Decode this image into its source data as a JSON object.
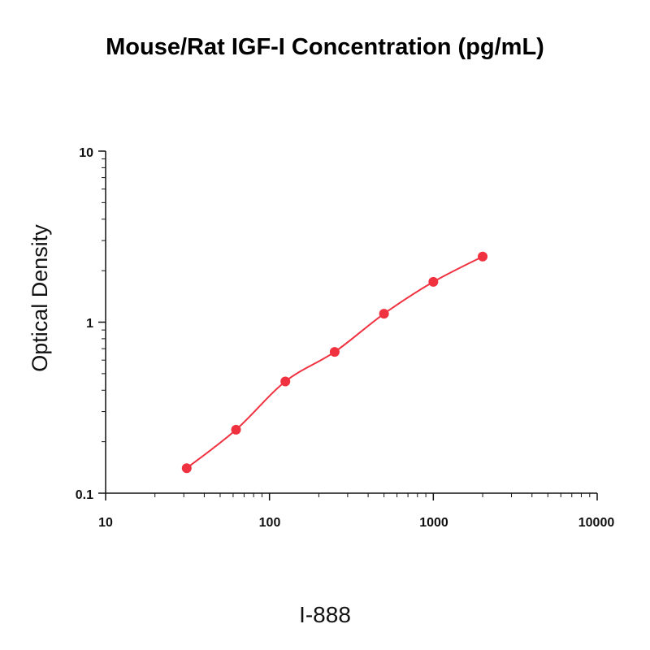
{
  "chart_data": {
    "type": "scatter",
    "title": "Mouse/Rat IGF-I Concentration (pg/mL)",
    "xlabel": "",
    "ylabel": "Optical Density",
    "x_scale": "log",
    "y_scale": "log",
    "xlim": [
      10,
      10000
    ],
    "ylim": [
      0.1,
      10
    ],
    "x_ticks": [
      "10",
      "100",
      "1000",
      "10000"
    ],
    "y_ticks": [
      "10",
      "1",
      "0.1"
    ],
    "grid": false,
    "legend": "none",
    "series": [
      {
        "x": [
          31.25,
          62.5,
          125,
          250,
          500,
          1000,
          2000
        ],
        "y": [
          0.14,
          0.235,
          0.45,
          0.67,
          1.12,
          1.72,
          2.42
        ],
        "color": "#f03240",
        "fit_curve": true
      }
    ],
    "caption": "I-888"
  }
}
